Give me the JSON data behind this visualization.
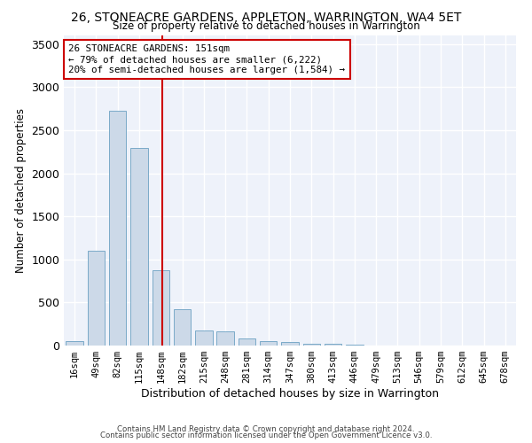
{
  "title": "26, STONEACRE GARDENS, APPLETON, WARRINGTON, WA4 5ET",
  "subtitle": "Size of property relative to detached houses in Warrington",
  "xlabel": "Distribution of detached houses by size in Warrington",
  "ylabel": "Number of detached properties",
  "bar_color": "#ccd9e8",
  "bar_edge_color": "#7aaac8",
  "background_color": "#eef2fa",
  "grid_color": "#ffffff",
  "bins": [
    "16sqm",
    "49sqm",
    "82sqm",
    "115sqm",
    "148sqm",
    "182sqm",
    "215sqm",
    "248sqm",
    "281sqm",
    "314sqm",
    "347sqm",
    "380sqm",
    "413sqm",
    "446sqm",
    "479sqm",
    "513sqm",
    "546sqm",
    "579sqm",
    "612sqm",
    "645sqm",
    "678sqm"
  ],
  "values": [
    50,
    1100,
    2730,
    2290,
    870,
    420,
    170,
    160,
    80,
    55,
    45,
    25,
    20,
    10,
    5,
    5,
    3,
    2,
    1,
    1,
    1
  ],
  "annotation_text": "26 STONEACRE GARDENS: 151sqm\n← 79% of detached houses are smaller (6,222)\n20% of semi-detached houses are larger (1,584) →",
  "annotation_box_color": "#ffffff",
  "annotation_box_edge": "#cc0000",
  "line_color": "#cc0000",
  "footer1": "Contains HM Land Registry data © Crown copyright and database right 2024.",
  "footer2": "Contains public sector information licensed under the Open Government Licence v3.0.",
  "ylim": [
    0,
    3600
  ],
  "yticks": [
    0,
    500,
    1000,
    1500,
    2000,
    2500,
    3000,
    3500
  ],
  "line_x_index": 4.09
}
